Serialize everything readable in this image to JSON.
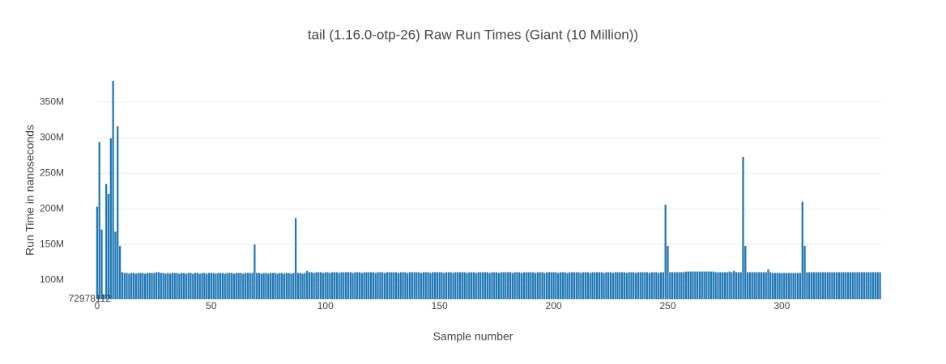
{
  "chart_data": {
    "type": "bar",
    "title": "tail (1.16.0-otp-26) Raw Run Times (Giant (10 Million))",
    "x_label": "Sample number",
    "y_label": "Run Time in nanoseconds",
    "color": "#1f77b4",
    "grid": true,
    "xlim": [
      -0.5,
      343.5
    ],
    "xticks": [
      0,
      50,
      100,
      150,
      200,
      250,
      300
    ],
    "ylim": [
      72978112,
      381000000
    ],
    "yticks": [
      72978112,
      {
        "value": 100000000,
        "label": "100M"
      },
      {
        "value": 150000000,
        "label": "150M"
      },
      {
        "value": 200000000,
        "label": "200M"
      },
      {
        "value": 250000000,
        "label": "250M"
      },
      {
        "value": 300000000,
        "label": "300M"
      },
      {
        "value": 350000000,
        "label": "350M"
      }
    ],
    "values": [
      203000000,
      294000000,
      171000000,
      80000000,
      235000000,
      221000000,
      299000000,
      380000000,
      168000000,
      316000000,
      148000000,
      111000000,
      110000000,
      110000000,
      109000000,
      110000000,
      110000000,
      109000000,
      110000000,
      110000000,
      110000000,
      109000000,
      110000000,
      110000000,
      110000000,
      110000000,
      111000000,
      111000000,
      110000000,
      110000000,
      109000000,
      110000000,
      109000000,
      110000000,
      110000000,
      110000000,
      109000000,
      110000000,
      110000000,
      109000000,
      110000000,
      110000000,
      109000000,
      110000000,
      110000000,
      109000000,
      110000000,
      110000000,
      109000000,
      110000000,
      110000000,
      110000000,
      109000000,
      110000000,
      110000000,
      110000000,
      109000000,
      110000000,
      110000000,
      110000000,
      109000000,
      110000000,
      110000000,
      110000000,
      109000000,
      110000000,
      110000000,
      110000000,
      110000000,
      150000000,
      110000000,
      110000000,
      109000000,
      110000000,
      110000000,
      109000000,
      110000000,
      110000000,
      110000000,
      109000000,
      110000000,
      110000000,
      109000000,
      110000000,
      110000000,
      109000000,
      110000000,
      187000000,
      110000000,
      110000000,
      109000000,
      110000000,
      113000000,
      111000000,
      111000000,
      110000000,
      111000000,
      111000000,
      111000000,
      110000000,
      111000000,
      111000000,
      110000000,
      111000000,
      111000000,
      111000000,
      110000000,
      111000000,
      111000000,
      111000000,
      111000000,
      111000000,
      110000000,
      111000000,
      111000000,
      111000000,
      110000000,
      111000000,
      111000000,
      111000000,
      111000000,
      111000000,
      110000000,
      111000000,
      111000000,
      111000000,
      110000000,
      111000000,
      111000000,
      111000000,
      111000000,
      111000000,
      110000000,
      111000000,
      111000000,
      111000000,
      110000000,
      111000000,
      111000000,
      111000000,
      111000000,
      111000000,
      110000000,
      111000000,
      111000000,
      111000000,
      110000000,
      111000000,
      111000000,
      111000000,
      111000000,
      111000000,
      110000000,
      111000000,
      111000000,
      111000000,
      110000000,
      111000000,
      111000000,
      111000000,
      111000000,
      111000000,
      110000000,
      111000000,
      111000000,
      111000000,
      110000000,
      111000000,
      111000000,
      111000000,
      111000000,
      111000000,
      110000000,
      111000000,
      111000000,
      111000000,
      110000000,
      111000000,
      111000000,
      111000000,
      111000000,
      111000000,
      110000000,
      111000000,
      111000000,
      111000000,
      110000000,
      111000000,
      111000000,
      111000000,
      111000000,
      111000000,
      110000000,
      111000000,
      111000000,
      111000000,
      110000000,
      111000000,
      111000000,
      111000000,
      111000000,
      111000000,
      110000000,
      111000000,
      111000000,
      111000000,
      110000000,
      111000000,
      111000000,
      111000000,
      111000000,
      111000000,
      110000000,
      111000000,
      111000000,
      111000000,
      110000000,
      111000000,
      111000000,
      111000000,
      111000000,
      111000000,
      110000000,
      111000000,
      111000000,
      111000000,
      110000000,
      111000000,
      111000000,
      111000000,
      111000000,
      111000000,
      110000000,
      111000000,
      111000000,
      111000000,
      110000000,
      111000000,
      111000000,
      111000000,
      111000000,
      111000000,
      110000000,
      111000000,
      111000000,
      111000000,
      110000000,
      111000000,
      111000000,
      206000000,
      148000000,
      111000000,
      111000000,
      111000000,
      111000000,
      111000000,
      111000000,
      111000000,
      112000000,
      112000000,
      112000000,
      112000000,
      112000000,
      112000000,
      112000000,
      112000000,
      112000000,
      112000000,
      112000000,
      112000000,
      112000000,
      111000000,
      111000000,
      111000000,
      111000000,
      111000000,
      111000000,
      112000000,
      111000000,
      113000000,
      111000000,
      111000000,
      111000000,
      273000000,
      148000000,
      111000000,
      111000000,
      111000000,
      111000000,
      111000000,
      111000000,
      111000000,
      111000000,
      111000000,
      115000000,
      111000000,
      110000000,
      110000000,
      110000000,
      110000000,
      110000000,
      110000000,
      110000000,
      110000000,
      110000000,
      110000000,
      110000000,
      110000000,
      110000000,
      210000000,
      148000000,
      111000000,
      111000000,
      111000000,
      111000000,
      111000000,
      111000000,
      111000000,
      111000000,
      111000000,
      111000000,
      111000000,
      111000000,
      111000000,
      111000000,
      111000000,
      111000000,
      111000000,
      111000000,
      111000000,
      111000000,
      111000000,
      111000000,
      111000000,
      111000000,
      111000000,
      111000000,
      111000000,
      111000000,
      111000000,
      111000000,
      111000000,
      111000000,
      111000000
    ]
  }
}
